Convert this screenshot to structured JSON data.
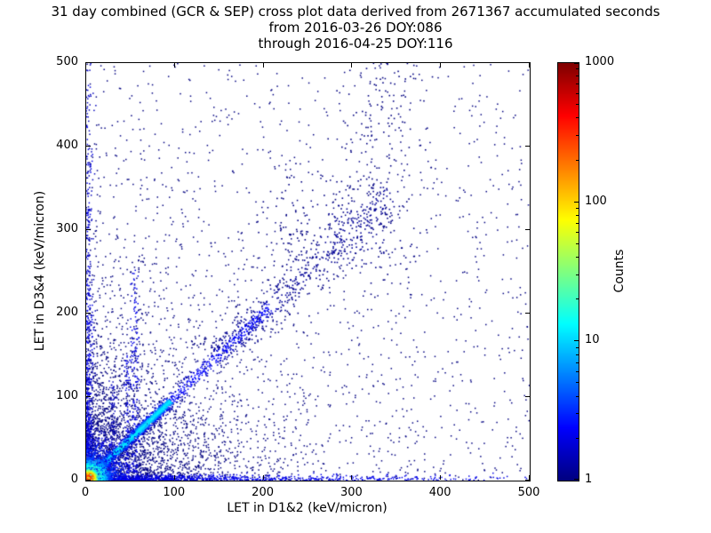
{
  "chart_data": {
    "type": "scatter",
    "title_lines": [
      "31 day combined (GCR & SEP) cross plot data derived from 2671367 accumulated seconds",
      "from 2016-03-26 DOY:086",
      "through 2016-04-25 DOY:116"
    ],
    "xlabel": "LET in D1&2 (keV/micron)",
    "ylabel": "LET in D3&4 (keV/micron)",
    "xlim": [
      0,
      500
    ],
    "ylim": [
      0,
      500
    ],
    "x_ticks": [
      0,
      100,
      200,
      300,
      400,
      500
    ],
    "y_ticks": [
      0,
      100,
      200,
      300,
      400,
      500
    ],
    "grid": false,
    "colorbar": {
      "label": "Counts",
      "scale": "log",
      "ticks": [
        1,
        10,
        100,
        1000
      ],
      "range": [
        1,
        1000
      ],
      "colormap": "jet",
      "color_low": "#00008f",
      "color_high": "#800000"
    },
    "features": [
      {
        "name": "sparse-uniform-background",
        "type": "uniform",
        "n": 1000,
        "x": [
          0,
          500
        ],
        "y": [
          0,
          500
        ],
        "value": 1,
        "size": 1.5
      },
      {
        "name": "sparse-low-let-bias",
        "type": "exp2d",
        "n": 2500,
        "scale_x": 60,
        "scale_y": 60,
        "value": 1,
        "size": 1.5
      },
      {
        "name": "sparse-mid-halo",
        "type": "exp2d",
        "n": 800,
        "scale_x": 150,
        "scale_y": 150,
        "value": 1,
        "size": 1.5
      },
      {
        "name": "bottom-row-band",
        "type": "band-h",
        "n": 1000,
        "x": [
          0,
          500
        ],
        "y0": 2,
        "spread": 2.5,
        "decay": 150,
        "value": 2,
        "size": 1.5
      },
      {
        "name": "left-column-band",
        "type": "band-v",
        "n": 450,
        "y": [
          0,
          500
        ],
        "x0": 2,
        "spread": 2.5,
        "decay": 130,
        "value": 2,
        "size": 1.5
      },
      {
        "name": "left-column-tall",
        "type": "band-v",
        "n": 200,
        "y": [
          0,
          500
        ],
        "x0": 3,
        "spread": 3,
        "decay": 0,
        "value": 1.5,
        "size": 1.5
      },
      {
        "name": "diagonal-far",
        "type": "diag",
        "n": 450,
        "t": [
          150,
          345
        ],
        "spread": 12,
        "value": 1.2,
        "size": 1.6
      },
      {
        "name": "diagonal-mid",
        "type": "diag",
        "n": 600,
        "t": [
          40,
          210
        ],
        "spread": 5,
        "value": 2.5,
        "size": 1.5
      },
      {
        "name": "diagonal-bright",
        "type": "diag",
        "n": 1400,
        "t": [
          3,
          95
        ],
        "spread": 2.5,
        "value": 12,
        "size": 1.6
      },
      {
        "name": "vertical-streak-x55",
        "type": "band-v",
        "n": 150,
        "y": [
          0,
          255
        ],
        "x0": 55,
        "spread": 2.5,
        "decay": 0,
        "value": 2,
        "size": 1.5
      },
      {
        "name": "vertical-streak-x46",
        "type": "band-v",
        "n": 90,
        "y": [
          0,
          150
        ],
        "x0": 46,
        "spread": 2,
        "decay": 0,
        "value": 2,
        "size": 1.5
      },
      {
        "name": "vertical-streak-x30",
        "type": "band-v",
        "n": 80,
        "y": [
          0,
          120
        ],
        "x0": 30,
        "spread": 2,
        "decay": 0,
        "value": 1.5,
        "size": 1.5
      },
      {
        "name": "high-let-cloud-x320",
        "type": "blob",
        "cx": 320,
        "cy": 390,
        "sx": 22,
        "sy": 75,
        "n": 130,
        "value": 1,
        "size": 1.6
      },
      {
        "name": "diag-cloud-300",
        "type": "blob",
        "cx": 295,
        "cy": 295,
        "sx": 35,
        "sy": 35,
        "n": 160,
        "value": 1.2,
        "size": 1.6
      },
      {
        "name": "cloud-x350-high",
        "type": "blob",
        "cx": 350,
        "cy": 455,
        "sx": 15,
        "sy": 35,
        "n": 50,
        "value": 1,
        "size": 1.6
      },
      {
        "name": "cloud-x230",
        "type": "blob",
        "cx": 230,
        "cy": 300,
        "sx": 18,
        "sy": 30,
        "n": 60,
        "value": 1,
        "size": 1.6
      },
      {
        "name": "origin-wide-fan",
        "type": "blob",
        "cx": 10,
        "cy": 10,
        "sx": 25,
        "sy": 25,
        "n": 900,
        "value": 5,
        "size": 1.4
      },
      {
        "name": "origin-warm-core",
        "type": "blob",
        "cx": 6,
        "cy": 6,
        "sx": 10,
        "sy": 10,
        "n": 1200,
        "value": 30,
        "size": 1.4
      },
      {
        "name": "origin-hot-core",
        "type": "blob",
        "cx": 3,
        "cy": 3,
        "sx": 4,
        "sy": 4,
        "n": 1800,
        "value": 400,
        "size": 1.4
      }
    ]
  }
}
